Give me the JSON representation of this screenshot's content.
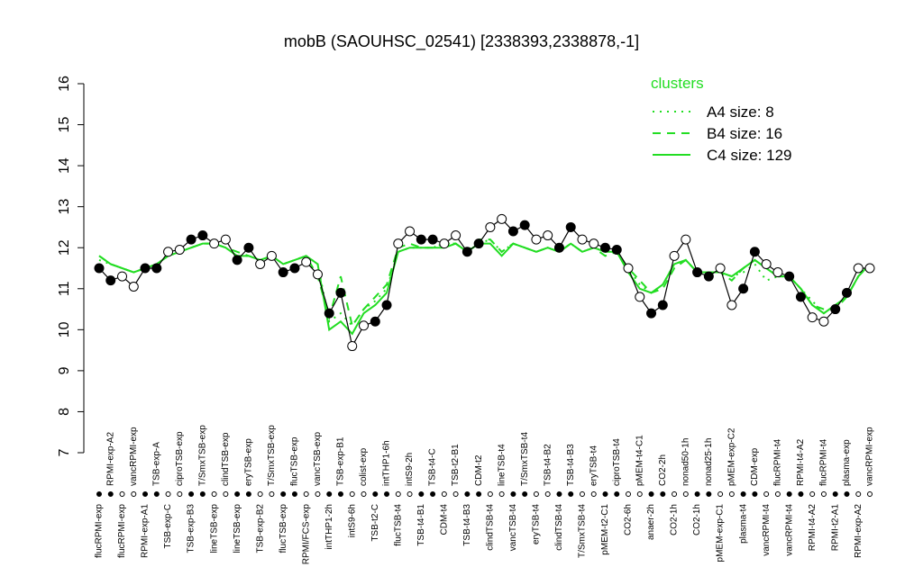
{
  "chart_data": {
    "type": "line",
    "title": "mobB (SAOUHSC_02541) [2338393,2338878,-1]",
    "categories": [
      "flucRPMI-exp",
      "RPMI-exp-A2",
      "flucRPMI-exp",
      "vancRPMI-exp",
      "RPMI-exp-A1",
      "TSB-exp-A",
      "TSB-exp-C",
      "ciproTSB-exp",
      "TSB-exp-B3",
      "T/SmxTSB-exp",
      "lineTSB-exp",
      "clindTSB-exp",
      "lineTSB-exp",
      "eryTSB-exp",
      "TSB-exp-B2",
      "T/SmxTSB-exp",
      "flucTSB-exp",
      "flucTSB-exp",
      "RPMI/FCS-exp",
      "vancTSB-exp",
      "intTHP1-2h",
      "TSB-exp-B1",
      "intS9-6h",
      "colist-exp",
      "TSB-t2-C",
      "intTHP1-6h",
      "flucTSB-t4",
      "intS9-2h",
      "TSB-t4-B1",
      "TSB-t4-C",
      "CDM-t4",
      "TSB-t2-B1",
      "TSB-t4-B3",
      "CDM-t2",
      "clindTSB-t4",
      "lineTSB-t4",
      "vancTSB-t4",
      "T/SmxTSB-t4",
      "eryTSB-t4",
      "TSB-t4-B2",
      "clindTSB-t4",
      "TSB-t4-B3",
      "T/SmxTSB-t4",
      "eryTSB-t4",
      "pMEM-t2-C1",
      "ciproTSB-t4",
      "CO2-6h",
      "pMEM-t4-C1",
      "anaer-2h",
      "CO2-2h",
      "CO2-1h",
      "nonad50-1h",
      "CO2-1h",
      "nonad25-1h",
      "pMEM-exp-C1",
      "pMEM-exp-C2",
      "plasma-t4",
      "CDM-exp",
      "vancRPMI-t4",
      "flucRPMI-t4",
      "vancRPMI-t4",
      "RPMI-t4-A2",
      "RPMI-t4-A2",
      "flucRPMI-t4",
      "RPMI-t2-A1",
      "plasma-exp",
      "RPMI-exp-A2",
      "vancRPMI-exp"
    ],
    "values": [
      11.5,
      11.2,
      11.3,
      11.05,
      11.5,
      11.5,
      11.9,
      11.95,
      12.2,
      12.3,
      12.1,
      12.2,
      11.7,
      12.0,
      11.6,
      11.8,
      11.4,
      11.5,
      11.65,
      11.35,
      10.4,
      10.9,
      9.6,
      10.1,
      10.2,
      10.6,
      12.1,
      12.4,
      12.2,
      12.2,
      12.1,
      12.3,
      11.9,
      12.1,
      12.5,
      12.7,
      12.4,
      12.55,
      12.2,
      12.3,
      12.0,
      12.5,
      12.2,
      12.1,
      12.0,
      11.95,
      11.5,
      10.8,
      10.4,
      10.6,
      11.8,
      12.2,
      11.4,
      11.3,
      11.5,
      10.6,
      11.0,
      11.9,
      11.6,
      11.4,
      11.3,
      10.8,
      10.3,
      10.2,
      10.5,
      10.9,
      11.5,
      11.5
    ],
    "clusters": {
      "title": "clusters",
      "series": [
        {
          "name": "A4 size: 8",
          "color": "#22dd22",
          "style": "dotted",
          "values": [
            11.7,
            11.6,
            11.5,
            11.4,
            11.5,
            11.6,
            11.8,
            11.9,
            12.0,
            12.1,
            12.1,
            12.0,
            11.8,
            11.8,
            11.7,
            11.8,
            11.6,
            11.7,
            11.8,
            11.6,
            10.2,
            10.4,
            10.1,
            10.5,
            10.7,
            11.0,
            11.9,
            12.0,
            12.0,
            12.0,
            12.1,
            12.1,
            11.9,
            12.1,
            12.2,
            11.9,
            12.1,
            12.0,
            11.9,
            12.0,
            11.9,
            12.1,
            11.9,
            12.0,
            11.9,
            11.9,
            11.5,
            11.1,
            10.9,
            11.1,
            11.6,
            11.7,
            11.4,
            11.4,
            11.4,
            11.3,
            11.4,
            11.6,
            11.2,
            11.3,
            11.3,
            11.0,
            10.7,
            10.4,
            10.6,
            10.8,
            11.3,
            11.6
          ]
        },
        {
          "name": "B4 size: 16",
          "color": "#22dd22",
          "style": "dashed",
          "values": [
            11.8,
            11.6,
            11.5,
            11.4,
            11.5,
            11.6,
            11.8,
            11.9,
            12.0,
            12.1,
            12.1,
            12.0,
            11.9,
            11.8,
            11.7,
            11.8,
            11.6,
            11.7,
            11.8,
            11.3,
            10.3,
            11.3,
            10.1,
            10.5,
            10.8,
            11.1,
            12.0,
            12.1,
            12.0,
            12.0,
            12.1,
            12.1,
            11.9,
            12.2,
            12.2,
            11.9,
            12.1,
            12.0,
            11.9,
            12.0,
            11.9,
            12.1,
            11.9,
            12.0,
            11.8,
            11.9,
            11.5,
            11.2,
            10.9,
            11.0,
            11.5,
            11.7,
            11.4,
            11.4,
            11.4,
            11.2,
            11.5,
            11.7,
            11.5,
            11.3,
            11.3,
            11.0,
            10.6,
            10.5,
            10.5,
            10.8,
            11.3,
            11.6
          ]
        },
        {
          "name": "C4 size: 129",
          "color": "#22dd22",
          "style": "solid",
          "values": [
            11.8,
            11.6,
            11.5,
            11.4,
            11.5,
            11.6,
            11.8,
            11.9,
            12.0,
            12.1,
            12.1,
            12.0,
            11.8,
            11.8,
            11.7,
            11.8,
            11.6,
            11.7,
            11.8,
            11.6,
            10.0,
            10.2,
            9.9,
            10.4,
            10.6,
            10.9,
            11.9,
            12.0,
            12.0,
            12.0,
            12.0,
            12.1,
            11.9,
            12.1,
            12.1,
            11.8,
            12.1,
            12.0,
            11.9,
            12.0,
            11.9,
            12.1,
            11.9,
            12.0,
            11.9,
            11.9,
            11.4,
            11.0,
            10.9,
            11.1,
            11.6,
            11.7,
            11.4,
            11.4,
            11.4,
            11.3,
            11.5,
            11.7,
            11.5,
            11.3,
            11.3,
            11.0,
            10.6,
            10.4,
            10.6,
            10.8,
            11.3,
            11.6
          ]
        }
      ]
    },
    "ylim": [
      7,
      16
    ],
    "yticks": [
      7,
      8,
      9,
      10,
      11,
      12,
      13,
      14,
      15,
      16
    ]
  }
}
